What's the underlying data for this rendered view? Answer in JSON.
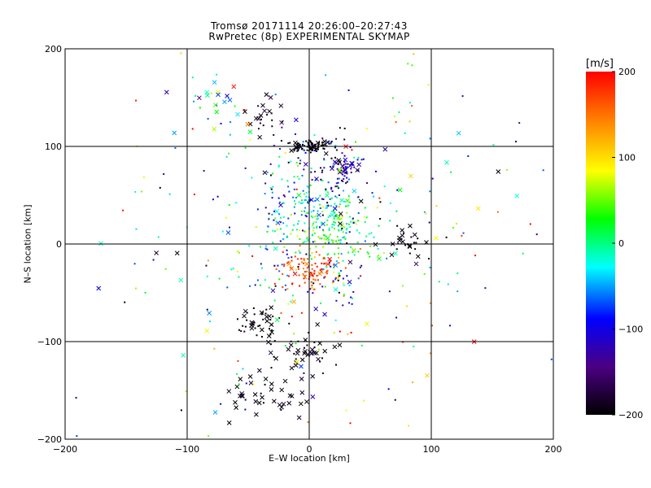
{
  "chart_data": {
    "type": "scatter",
    "title_line1": "Tromsø 20171114 20:26:00–20:27:43",
    "title_line2": "RwPretec (8p) EXPERIMENTAL SKYMAP",
    "xlabel": "E–W location [km]",
    "ylabel": "N–S location [km]",
    "xlim": [
      -200,
      200
    ],
    "ylim": [
      -200,
      200
    ],
    "x_ticks": [
      -200,
      -100,
      0,
      100,
      200
    ],
    "y_ticks": [
      -200,
      -100,
      0,
      100,
      200
    ],
    "x_tick_labels": [
      "−200",
      "−100",
      "0",
      "100",
      "200"
    ],
    "y_tick_labels": [
      "−200",
      "−100",
      "0",
      "100",
      "200"
    ],
    "grid": true,
    "colorbar": {
      "unit": "[m/s]",
      "range": [
        -200,
        200
      ],
      "ticks": [
        200,
        100,
        0,
        -100,
        -200
      ],
      "tick_labels": [
        "200",
        "100",
        "0",
        "−100",
        "−200"
      ],
      "colormap": [
        "#000000",
        "#4b0082",
        "#0000ff",
        "#00ffff",
        "#00ff00",
        "#ffff00",
        "#ff8000",
        "#ff0000"
      ]
    },
    "markers": [
      "cross",
      "dot"
    ],
    "clusters": [
      {
        "cx": 0,
        "cy": 100,
        "sx": 10,
        "sy": 3,
        "n": 90,
        "v": -200,
        "vs": 10,
        "cross": 0.2
      },
      {
        "cx": 28,
        "cy": 78,
        "sx": 8,
        "sy": 5,
        "n": 45,
        "v": -130,
        "vs": 25,
        "cross": 0.4
      },
      {
        "cx": -35,
        "cy": 130,
        "sx": 8,
        "sy": 10,
        "n": 25,
        "v": -185,
        "vs": 15,
        "cross": 0.5
      },
      {
        "cx": 15,
        "cy": 15,
        "sx": 18,
        "sy": 18,
        "n": 190,
        "v": 20,
        "vs": 45,
        "cross": 0.05
      },
      {
        "cx": -15,
        "cy": 25,
        "sx": 15,
        "sy": 28,
        "n": 80,
        "v": -40,
        "vs": 45,
        "cross": 0.05
      },
      {
        "cx": 0,
        "cy": -25,
        "sx": 12,
        "sy": 10,
        "n": 100,
        "v": 175,
        "vs": 25,
        "cross": 0.12
      },
      {
        "cx": 10,
        "cy": 60,
        "sx": 22,
        "sy": 28,
        "n": 130,
        "v": -100,
        "vs": 90,
        "cross": 0.05
      },
      {
        "cx": -40,
        "cy": -80,
        "sx": 14,
        "sy": 9,
        "n": 45,
        "v": -195,
        "vs": 10,
        "cross": 0.4
      },
      {
        "cx": -10,
        "cy": -110,
        "sx": 18,
        "sy": 15,
        "n": 45,
        "v": -195,
        "vs": 10,
        "cross": 0.7
      },
      {
        "cx": -35,
        "cy": -155,
        "sx": 18,
        "sy": 15,
        "n": 40,
        "v": -195,
        "vs": 10,
        "cross": 0.9
      },
      {
        "cx": 80,
        "cy": 5,
        "sx": 10,
        "sy": 10,
        "n": 30,
        "v": -195,
        "vs": 10,
        "cross": 0.5
      },
      {
        "cx": 20,
        "cy": -40,
        "sx": 15,
        "sy": 12,
        "n": 35,
        "v": -100,
        "vs": 60,
        "cross": 0.1
      },
      {
        "cx": -80,
        "cy": 150,
        "sx": 12,
        "sy": 15,
        "n": 20,
        "v": -30,
        "vs": 70,
        "cross": 0.6
      },
      {
        "cx": 0,
        "cy": 0,
        "sx": 90,
        "sy": 100,
        "n": 280,
        "v": 0,
        "vs": 120,
        "cross": 0.2
      }
    ]
  }
}
